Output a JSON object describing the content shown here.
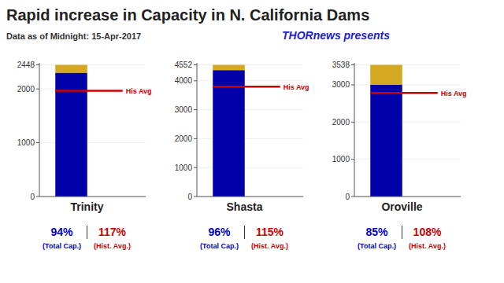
{
  "chart_data": [
    {
      "type": "bar",
      "title": "Rapid increase in Capacity in N. California Dams",
      "subtitle": "Data as of Midnight: 15-Apr-2017",
      "annotations": [
        "THORnews presents"
      ],
      "x_label": "Trinity",
      "categories": [
        null
      ],
      "stacked": true,
      "tick_labels": "y",
      "series": [
        {
          "color": "#0000aa",
          "values": [
            2301
          ]
        },
        {
          "color": "#d4a820",
          "values": [
            147
          ]
        }
      ],
      "ylim": [
        0,
        2484.72
      ],
      "yticks": [
        0,
        1000,
        2000,
        2448
      ],
      "hist_avg": 1967,
      "hist_label": "His Avg",
      "hist_color": "#cc0000",
      "percentages": [
        {
          "value": 94,
          "label": "94%",
          "caption": "(Total Cap.)",
          "color": "#0000cc"
        },
        {
          "value": 117,
          "label": "117%",
          "caption": "(Hist. Avg.)",
          "color": "#cc0000"
        }
      ]
    },
    {
      "type": "bar",
      "x_label": "Shasta",
      "categories": [
        null
      ],
      "stacked": true,
      "tick_labels": "y",
      "series": [
        {
          "color": "#0000aa",
          "values": [
            4370
          ]
        },
        {
          "color": "#d4a820",
          "values": [
            182
          ]
        }
      ],
      "ylim": [
        0,
        4620.28
      ],
      "yticks": [
        0,
        1000,
        2000,
        3000,
        4000,
        4552
      ],
      "hist_avg": 3800,
      "hist_label": "His Avg",
      "hist_color": "#cc0000",
      "percentages": [
        {
          "value": 96,
          "label": "96%",
          "caption": "(Total Cap.)",
          "color": "#0000cc"
        },
        {
          "value": 115,
          "label": "115%",
          "caption": "(Hist. Avg.)",
          "color": "#cc0000"
        }
      ]
    },
    {
      "type": "bar",
      "x_label": "Oroville",
      "categories": [
        null
      ],
      "stacked": true,
      "tick_labels": "y",
      "series": [
        {
          "color": "#0000aa",
          "values": [
            3007
          ]
        },
        {
          "color": "#d4a820",
          "values": [
            531
          ]
        }
      ],
      "ylim": [
        0,
        3591.07
      ],
      "yticks": [
        0,
        1000,
        2000,
        3000,
        3538
      ],
      "hist_avg": 2785,
      "hist_label": "His Avg",
      "hist_color": "#cc0000",
      "percentages": [
        {
          "value": 85,
          "label": "85%",
          "caption": "(Total Cap.)",
          "color": "#0000cc"
        },
        {
          "value": 108,
          "label": "108%",
          "caption": "(Hist. Avg.)",
          "color": "#cc0000"
        }
      ]
    }
  ]
}
